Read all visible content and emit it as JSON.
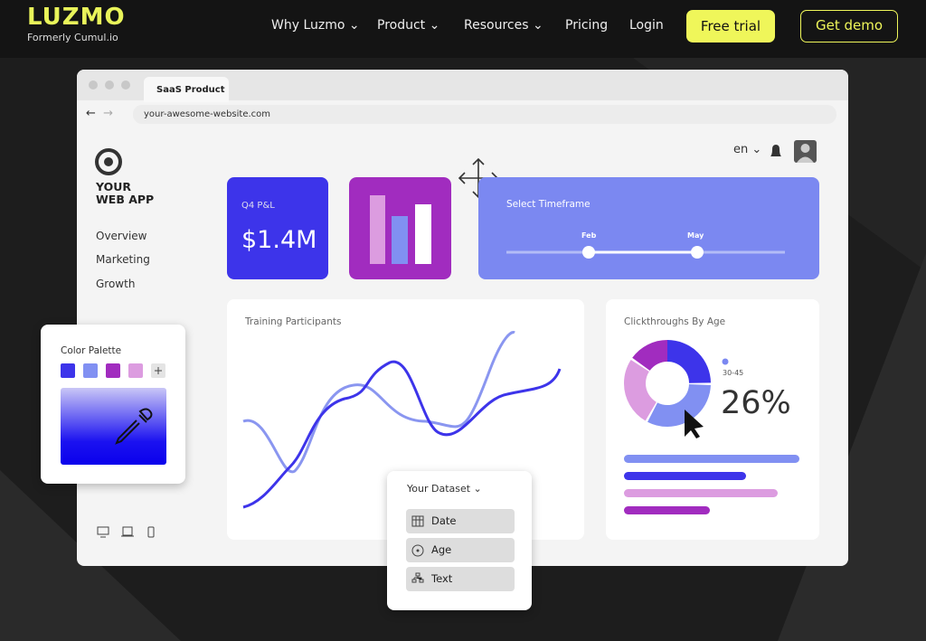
{
  "header": {
    "logo": "LUZMO",
    "tagline": "Formerly Cumul.io",
    "nav": [
      "Why Luzmo",
      "Product",
      "Resources",
      "Pricing",
      "Login"
    ],
    "cta_primary": "Free trial",
    "cta_secondary": "Get demo"
  },
  "browser": {
    "tab": "SaaS Product",
    "url": "your-awesome-website.com"
  },
  "app": {
    "brand": [
      "YOUR",
      "WEB APP"
    ],
    "language": "en",
    "menu": [
      "Overview",
      "Marketing",
      "Growth"
    ]
  },
  "kpi": {
    "label": "Q4 P&L",
    "value": "$1.4M"
  },
  "timeframe": {
    "title": "Select Timeframe",
    "start": "Feb",
    "end": "May"
  },
  "training": {
    "title": "Training Participants"
  },
  "clickthroughs": {
    "title": "Clickthroughs By Age",
    "legend": "30-45",
    "value": "26%"
  },
  "palette": {
    "title": "Color Palette"
  },
  "dataset": {
    "title": "Your Dataset",
    "fields": [
      "Date",
      "Age",
      "Text"
    ]
  }
}
